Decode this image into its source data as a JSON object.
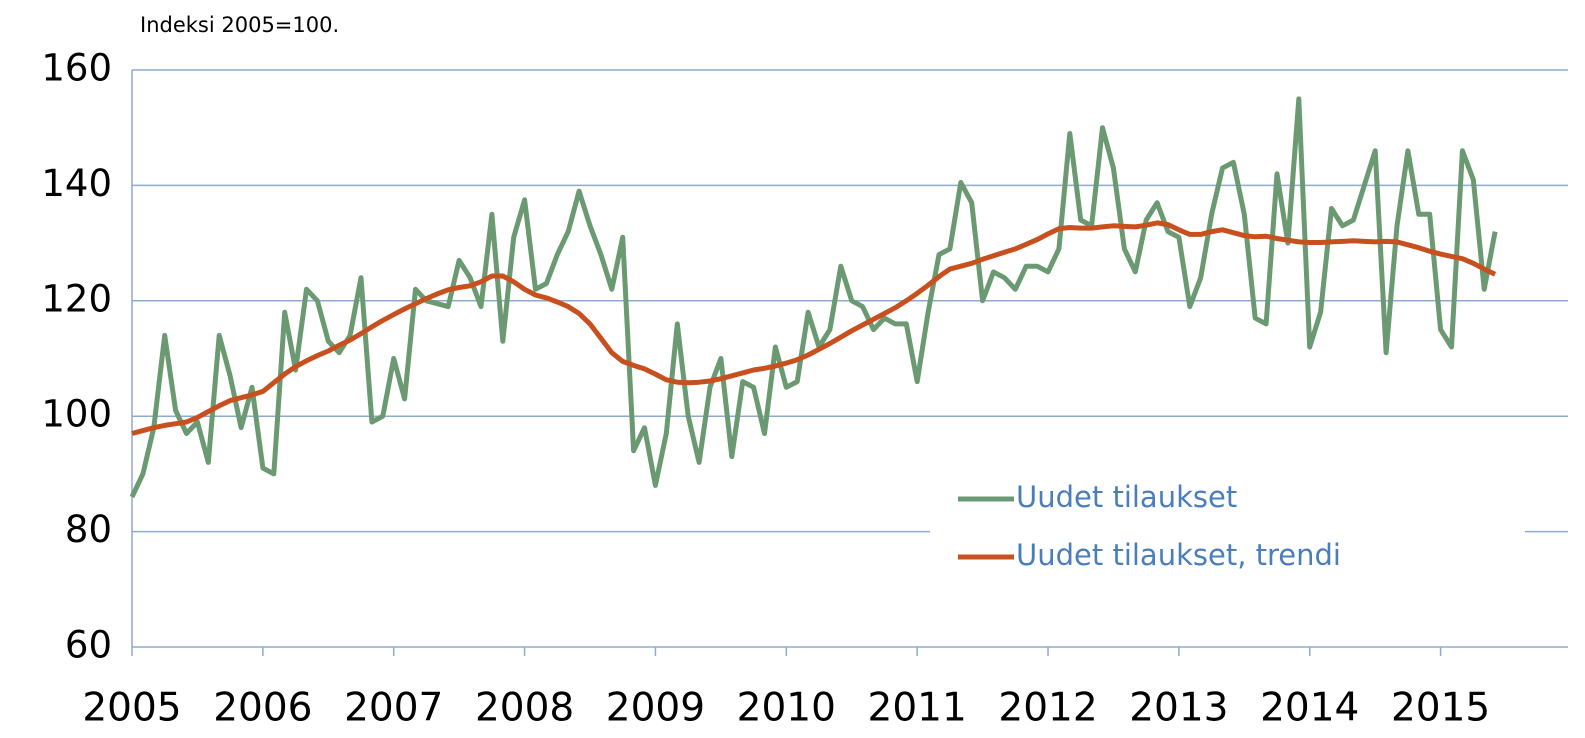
{
  "chart_data": {
    "type": "line",
    "subtitle": "Indeksi 2005=100.",
    "categories": [
      "2005",
      null,
      null,
      null,
      null,
      null,
      null,
      null,
      null,
      null,
      null,
      null,
      "2006",
      null,
      null,
      null,
      null,
      null,
      null,
      null,
      null,
      null,
      null,
      null,
      "2007",
      null,
      null,
      null,
      null,
      null,
      null,
      null,
      null,
      null,
      null,
      null,
      "2008",
      null,
      null,
      null,
      null,
      null,
      null,
      null,
      null,
      null,
      null,
      null,
      "2009",
      null,
      null,
      null,
      null,
      null,
      null,
      null,
      null,
      null,
      null,
      null,
      "2010",
      null,
      null,
      null,
      null,
      null,
      null,
      null,
      null,
      null,
      null,
      null,
      "2011",
      null,
      null,
      null,
      null,
      null,
      null,
      null,
      null,
      null,
      null,
      null,
      "2012",
      null,
      null,
      null,
      null,
      null,
      null,
      null,
      null,
      null,
      null,
      null,
      "2013",
      null,
      null,
      null,
      null,
      null,
      null,
      null,
      null,
      null,
      null,
      null,
      "2014",
      null,
      null,
      null,
      null,
      null,
      null,
      null,
      null,
      null,
      null,
      null,
      "2015",
      null,
      null,
      null,
      null,
      null
    ],
    "series": [
      {
        "name": "Uudet tilaukset",
        "color": "#6b9a72",
        "values": [
          86,
          90,
          98,
          114,
          101,
          97,
          99,
          92,
          114,
          107,
          98,
          105,
          91,
          90,
          118,
          108,
          122,
          120,
          113,
          111,
          114,
          124,
          99,
          100,
          110,
          103,
          122,
          120,
          119.5,
          119,
          127,
          124,
          119,
          135,
          113,
          131,
          137.5,
          122,
          123,
          128,
          132,
          139,
          133,
          128,
          122,
          131,
          94,
          98,
          88,
          97,
          116,
          100,
          92,
          105,
          110,
          93,
          106,
          105,
          97,
          112,
          105,
          106,
          118,
          112,
          115,
          126,
          120,
          119,
          115,
          117,
          116,
          116,
          106,
          118,
          128,
          129,
          140.5,
          137,
          120,
          125,
          124,
          122,
          126,
          126,
          125,
          129,
          149,
          134,
          133,
          150,
          143,
          129,
          125,
          134,
          137,
          132,
          131,
          119,
          124,
          135,
          143,
          144,
          135,
          117,
          116,
          142,
          130,
          155,
          112,
          118,
          136,
          133,
          134,
          140,
          146,
          111,
          133,
          146,
          135,
          135,
          115,
          112,
          146,
          141,
          122,
          132
        ]
      },
      {
        "name": "Uudet tilaukset, trendi",
        "color": "#c8501f",
        "values": [
          97,
          97.5,
          98,
          98.4,
          98.7,
          99,
          99.8,
          100.8,
          101.8,
          102.7,
          103.2,
          103.7,
          104.3,
          105.8,
          107.3,
          108.6,
          109.6,
          110.5,
          111.3,
          112.3,
          113.2,
          114.3,
          115.5,
          116.6,
          117.6,
          118.6,
          119.5,
          120.4,
          121.2,
          121.9,
          122.3,
          122.6,
          123.3,
          124.3,
          124.3,
          123.3,
          122,
          121,
          120.5,
          119.8,
          119,
          117.8,
          116,
          113.5,
          111,
          109.5,
          108.8,
          108.2,
          107.3,
          106.3,
          105.9,
          105.8,
          105.9,
          106.1,
          106.5,
          107,
          107.5,
          108,
          108.3,
          108.7,
          109.2,
          109.8,
          110.6,
          111.6,
          112.6,
          113.7,
          114.8,
          115.8,
          116.8,
          117.8,
          118.8,
          120,
          121.3,
          122.7,
          124.2,
          125.5,
          126,
          126.5,
          127.2,
          127.8,
          128.4,
          129,
          129.8,
          130.6,
          131.6,
          132.5,
          132.7,
          132.6,
          132.6,
          132.8,
          133,
          132.9,
          132.8,
          133.1,
          133.5,
          133.2,
          132.3,
          131.5,
          131.5,
          132,
          132.3,
          131.8,
          131.3,
          131.1,
          131.2,
          130.8,
          130.5,
          130.2,
          130.1,
          130.1,
          130.2,
          130.3,
          130.4,
          130.3,
          130.2,
          130.3,
          130.2,
          129.7,
          129.2,
          128.6,
          128.1,
          127.7,
          127.3,
          126.5,
          125.5,
          124.6
        ]
      }
    ],
    "ylim": [
      60,
      160
    ],
    "yticks": [
      60,
      80,
      100,
      120,
      140,
      160
    ],
    "grid": true,
    "legend": "lower right"
  }
}
